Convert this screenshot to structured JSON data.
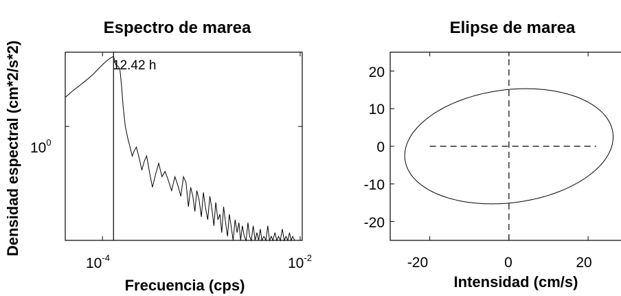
{
  "chart_data": [
    {
      "type": "line",
      "title": "Espectro de marea",
      "xlabel": "Frecuencia (cps)",
      "ylabel": "Densidad espectral (cm*2/s*2)",
      "xscale": "log",
      "yscale": "log",
      "xlim": [
        4.2e-05,
        0.0105
      ],
      "ylim": [
        0.14,
        3.6
      ],
      "x_ticks": [
        {
          "base": "10",
          "exp": "-4",
          "value": 0.0001
        },
        {
          "base": "10",
          "exp": "-2",
          "value": 0.01
        }
      ],
      "y_ticks": [
        {
          "base": "10",
          "exp": "0",
          "value": 1
        }
      ],
      "annotation": {
        "text": "12.42 h",
        "x": 0.0001293
      },
      "series": [
        {
          "values_x": [
            4.2e-05,
            5e-05,
            6e-05,
            7e-05,
            8e-05,
            9e-05,
            0.0001,
            0.00011,
            0.00012,
            0.0001293,
            0.000136,
            0.000142,
            0.00015,
            0.000156,
            0.000162,
            0.00017,
            0.00018,
            0.00019,
            0.0002,
            0.00021,
            0.00022,
            0.000235,
            0.00025,
            0.000265,
            0.00028,
            0.0003,
            0.00032,
            0.000345,
            0.00037,
            0.0004,
            0.00043,
            0.00046,
            0.0005,
            0.00054,
            0.00058,
            0.00062,
            0.00066,
            0.0007,
            0.00074,
            0.00078,
            0.00082,
            0.00086,
            0.0009,
            0.00095,
            0.001,
            0.00105,
            0.0011,
            0.00116,
            0.00122,
            0.00128,
            0.00134,
            0.0014,
            0.00147,
            0.00154,
            0.00161,
            0.00168,
            0.00176,
            0.00184,
            0.00192,
            0.002,
            0.0021,
            0.0022,
            0.0023,
            0.0024,
            0.0025,
            0.0026,
            0.00272,
            0.00284,
            0.00296,
            0.00308,
            0.0032,
            0.00335,
            0.0035,
            0.00365,
            0.0038,
            0.00395,
            0.0041,
            0.0043,
            0.0045,
            0.0047,
            0.0049,
            0.0051,
            0.0053,
            0.00555,
            0.0058,
            0.00605,
            0.0063,
            0.0066,
            0.0069,
            0.0072,
            0.0075,
            0.0078,
            0.0081,
            0.0084,
            0.0088
          ],
          "values_y": [
            1.65,
            1.85,
            2.05,
            2.25,
            2.45,
            2.68,
            2.9,
            3.1,
            3.25,
            3.35,
            2.9,
            2.85,
            2.7,
            2.0,
            1.4,
            1.0,
            0.82,
            0.7,
            0.6,
            0.66,
            0.7,
            0.58,
            0.47,
            0.55,
            0.6,
            0.45,
            0.35,
            0.44,
            0.53,
            0.42,
            0.46,
            0.4,
            0.33,
            0.42,
            0.36,
            0.3,
            0.42,
            0.38,
            0.25,
            0.35,
            0.3,
            0.23,
            0.33,
            0.28,
            0.21,
            0.32,
            0.25,
            0.2,
            0.3,
            0.24,
            0.18,
            0.27,
            0.2,
            0.22,
            0.16,
            0.25,
            0.19,
            0.15,
            0.22,
            0.18,
            0.14,
            0.2,
            0.16,
            0.19,
            0.14,
            0.18,
            0.15,
            0.14,
            0.19,
            0.15,
            0.14,
            0.18,
            0.14,
            0.16,
            0.14,
            0.17,
            0.14,
            0.15,
            0.14,
            0.18,
            0.14,
            0.15,
            0.14,
            0.16,
            0.14,
            0.15,
            0.14,
            0.17,
            0.14,
            0.15,
            0.14,
            0.16,
            0.14,
            0.15,
            0.14
          ]
        }
      ]
    },
    {
      "type": "line",
      "title": "Elipse de marea",
      "xlabel": "Intensidad (cm/s)",
      "ylabel": "",
      "xlim": [
        -30,
        29
      ],
      "ylim": [
        -25,
        25
      ],
      "x_ticks": [
        "-20",
        "0",
        "20"
      ],
      "x_tick_values": [
        -20,
        0,
        20
      ],
      "y_ticks": [
        "20",
        "10",
        "0",
        "-10",
        "-20"
      ],
      "y_tick_values": [
        20,
        10,
        0,
        -10,
        -20
      ],
      "ellipse": {
        "center": [
          0,
          0
        ],
        "semi_major": 26.5,
        "semi_minor": 15.0,
        "angle_deg": 8
      },
      "dashed_lines": [
        {
          "x": [
            -20,
            22
          ],
          "y": [
            0,
            0
          ]
        },
        {
          "x": [
            0,
            0
          ],
          "y": [
            -25,
            25
          ]
        }
      ]
    }
  ]
}
